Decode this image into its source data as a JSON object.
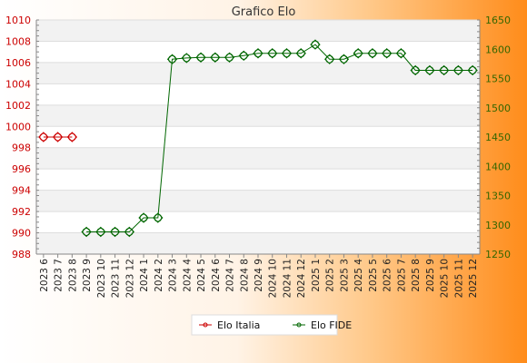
{
  "chart_data": {
    "type": "line",
    "title": "Grafico Elo",
    "categories": [
      "2023 6",
      "2023 7",
      "2023 8",
      "2023 9",
      "2023 10",
      "2023 11",
      "2023 12",
      "2024 1",
      "2024 2",
      "2024 3",
      "2024 4",
      "2024 5",
      "2024 6",
      "2024 7",
      "2024 8",
      "2024 9",
      "2024 10",
      "2024 11",
      "2024 12",
      "2025 1",
      "2025 2",
      "2025 3",
      "2025 4",
      "2025 5",
      "2025 6",
      "2025 7",
      "2025 8",
      "2025 9",
      "2025 10",
      "2025 11",
      "2025 12"
    ],
    "axes": {
      "left": {
        "min": 988,
        "max": 1010,
        "ticks": [
          988,
          990,
          992,
          994,
          996,
          998,
          1000,
          1002,
          1004,
          1006,
          1008,
          1010
        ]
      },
      "right": {
        "min": 1250,
        "max": 1650,
        "ticks": [
          1250,
          1300,
          1350,
          1400,
          1450,
          1500,
          1550,
          1600,
          1650
        ]
      }
    },
    "grid": true,
    "legend_position": "bottom",
    "series": [
      {
        "name": "Elo Italia",
        "axis": "left",
        "color": "#cc0000",
        "values": [
          999,
          999,
          999,
          null,
          null,
          null,
          null,
          null,
          null,
          null,
          null,
          null,
          null,
          null,
          null,
          null,
          null,
          null,
          null,
          null,
          null,
          null,
          null,
          null,
          null,
          null,
          null,
          null,
          null,
          null,
          null
        ]
      },
      {
        "name": "Elo FIDE",
        "axis": "right",
        "color": "#006600",
        "values": [
          null,
          null,
          null,
          1288,
          1288,
          1288,
          1288,
          1312,
          1312,
          1583,
          1585,
          1586,
          1586,
          1586,
          1589,
          1593,
          1593,
          1593,
          1593,
          1608,
          1583,
          1583,
          1593,
          1593,
          1593,
          1593,
          1564,
          1564,
          1564,
          1564,
          1564
        ]
      }
    ]
  }
}
